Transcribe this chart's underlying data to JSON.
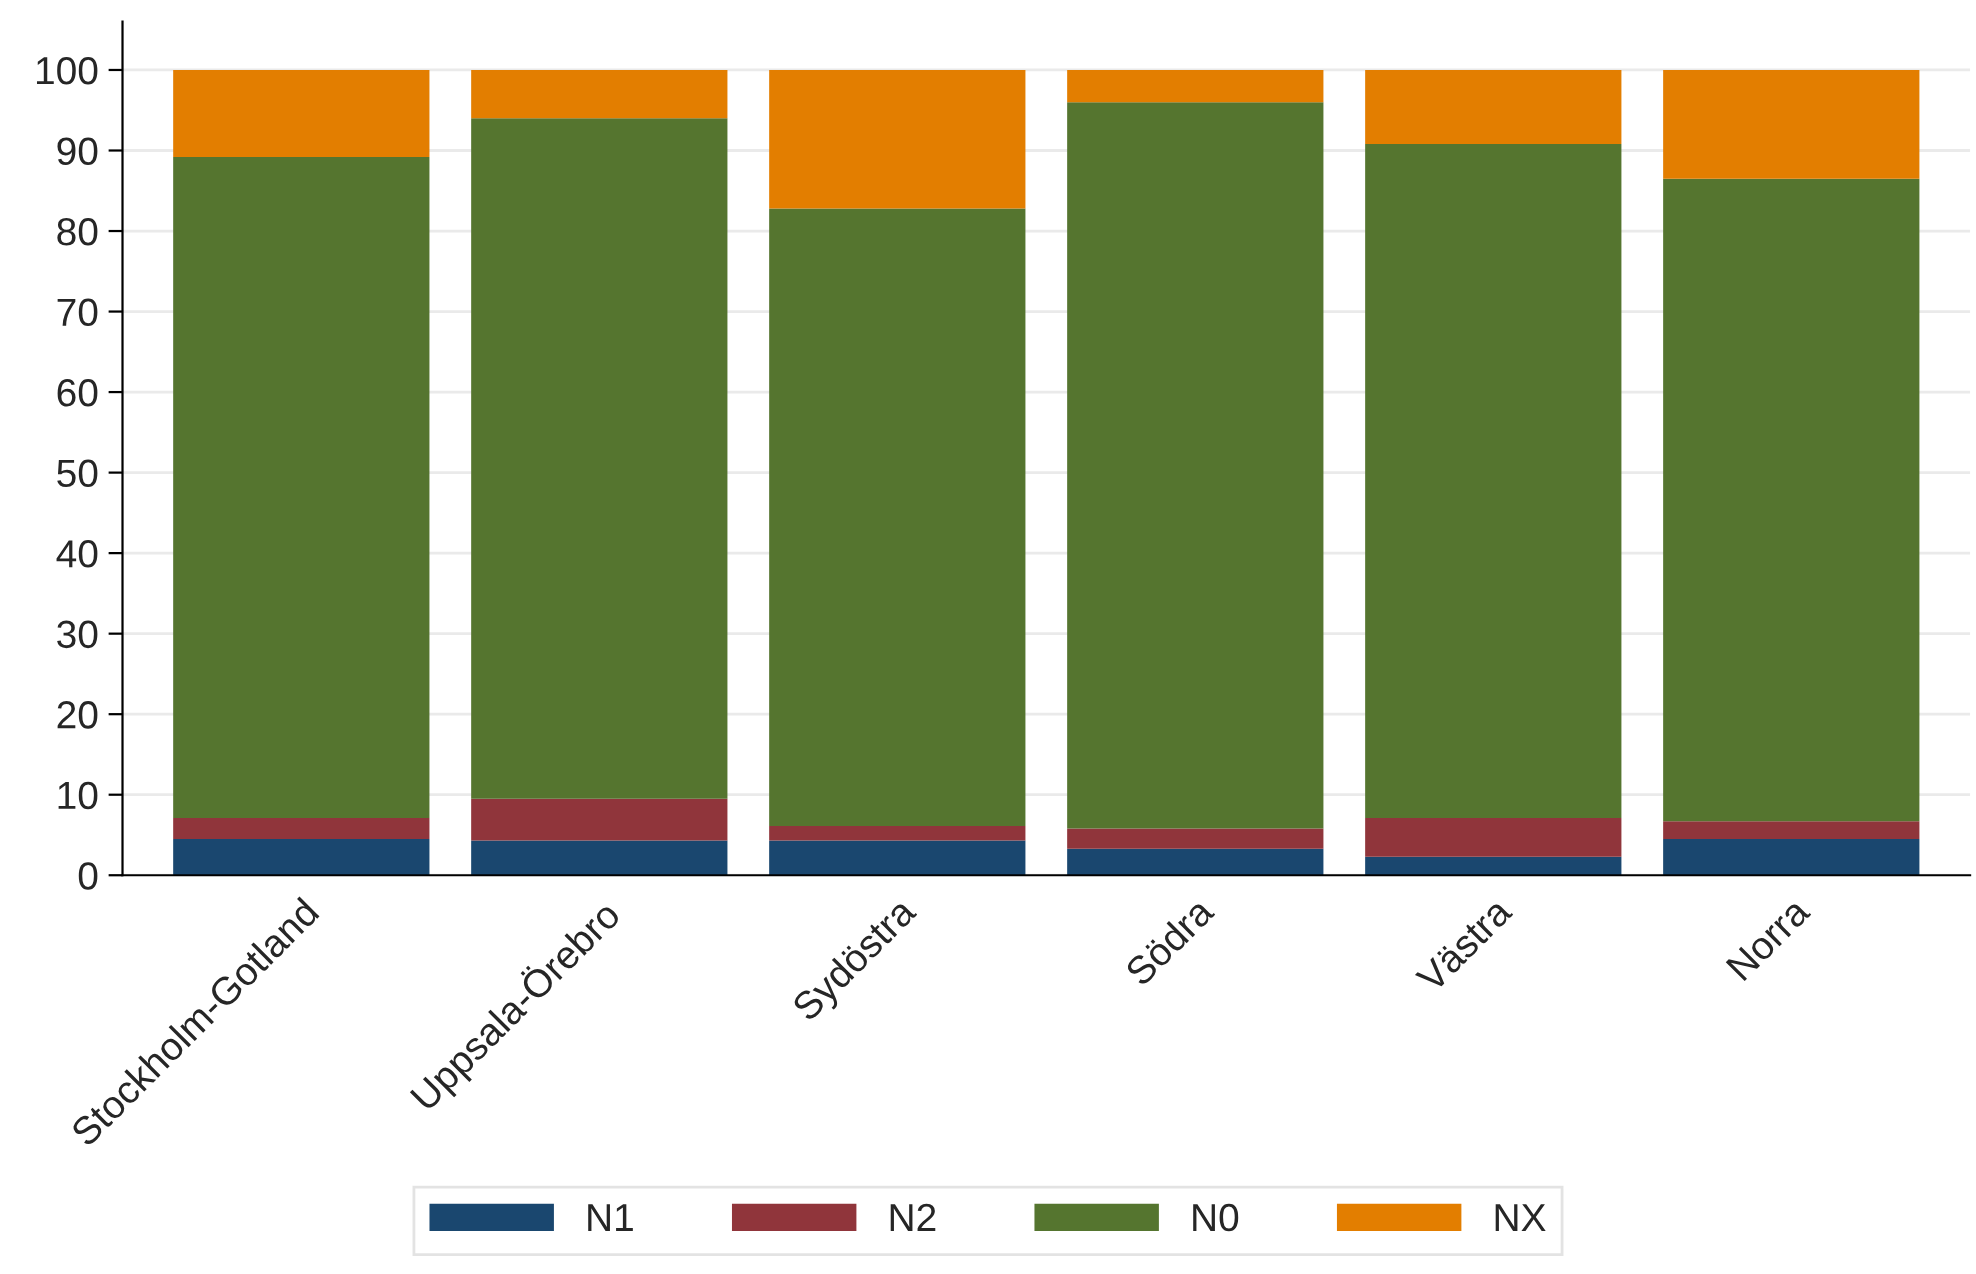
{
  "chart_data": {
    "type": "bar",
    "stacked": true,
    "categories": [
      "Stockholm-Gotland",
      "Uppsala-Örebro",
      "Sydöstra",
      "Södra",
      "Västra",
      "Norra"
    ],
    "series": [
      {
        "name": "N1",
        "color": "#1a476f",
        "values": [
          4.5,
          4.3,
          4.3,
          3.3,
          2.3,
          4.5
        ]
      },
      {
        "name": "N2",
        "color": "#90353b",
        "values": [
          2.6,
          5.2,
          1.8,
          2.5,
          4.8,
          2.2
        ]
      },
      {
        "name": "N0",
        "color": "#55752f",
        "values": [
          82.1,
          84.5,
          76.7,
          90.2,
          83.7,
          79.8
        ]
      },
      {
        "name": "NX",
        "color": "#e37e00",
        "values": [
          10.8,
          6.0,
          17.2,
          4.0,
          9.2,
          13.5
        ]
      }
    ],
    "ylim": [
      0,
      106
    ],
    "yticks": [
      0,
      10,
      20,
      30,
      40,
      50,
      60,
      70,
      80,
      90,
      100
    ],
    "grid": "y",
    "legend": "bottom"
  }
}
